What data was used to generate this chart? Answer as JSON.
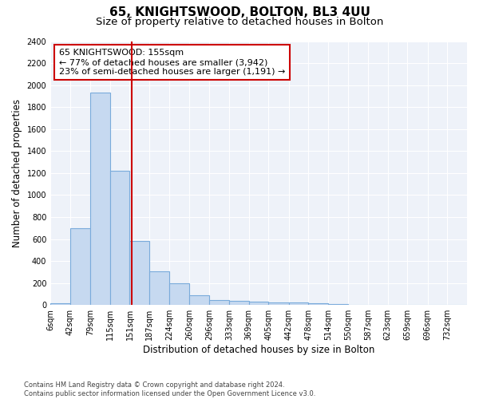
{
  "title": "65, KNIGHTSWOOD, BOLTON, BL3 4UU",
  "subtitle": "Size of property relative to detached houses in Bolton",
  "xlabel": "Distribution of detached houses by size in Bolton",
  "ylabel": "Number of detached properties",
  "bin_labels": [
    "6sqm",
    "42sqm",
    "79sqm",
    "115sqm",
    "151sqm",
    "187sqm",
    "224sqm",
    "260sqm",
    "296sqm",
    "333sqm",
    "369sqm",
    "405sqm",
    "442sqm",
    "478sqm",
    "514sqm",
    "550sqm",
    "587sqm",
    "623sqm",
    "659sqm",
    "696sqm",
    "732sqm"
  ],
  "bin_edges": [
    6,
    42,
    79,
    115,
    151,
    187,
    224,
    260,
    296,
    333,
    369,
    405,
    442,
    478,
    514,
    550,
    587,
    623,
    659,
    696,
    732,
    768
  ],
  "bar_values": [
    15,
    700,
    1930,
    1220,
    580,
    305,
    200,
    85,
    45,
    35,
    30,
    25,
    20,
    15,
    10,
    5,
    5,
    2,
    2,
    2,
    2
  ],
  "bar_color": "#c6d9f0",
  "bar_edge_color": "#7aabdb",
  "bar_edge_width": 0.8,
  "vline_x": 155,
  "vline_color": "#cc0000",
  "annotation_text": "65 KNIGHTSWOOD: 155sqm\n← 77% of detached houses are smaller (3,942)\n23% of semi-detached houses are larger (1,191) →",
  "annotation_box_color": "#cc0000",
  "ylim": [
    0,
    2400
  ],
  "yticks": [
    0,
    200,
    400,
    600,
    800,
    1000,
    1200,
    1400,
    1600,
    1800,
    2000,
    2200,
    2400
  ],
  "bg_color": "#eef2f9",
  "grid_color": "#ffffff",
  "footnote": "Contains HM Land Registry data © Crown copyright and database right 2024.\nContains public sector information licensed under the Open Government Licence v3.0.",
  "title_fontsize": 11,
  "subtitle_fontsize": 9.5,
  "axis_label_fontsize": 8.5,
  "tick_fontsize": 7,
  "annotation_fontsize": 8
}
